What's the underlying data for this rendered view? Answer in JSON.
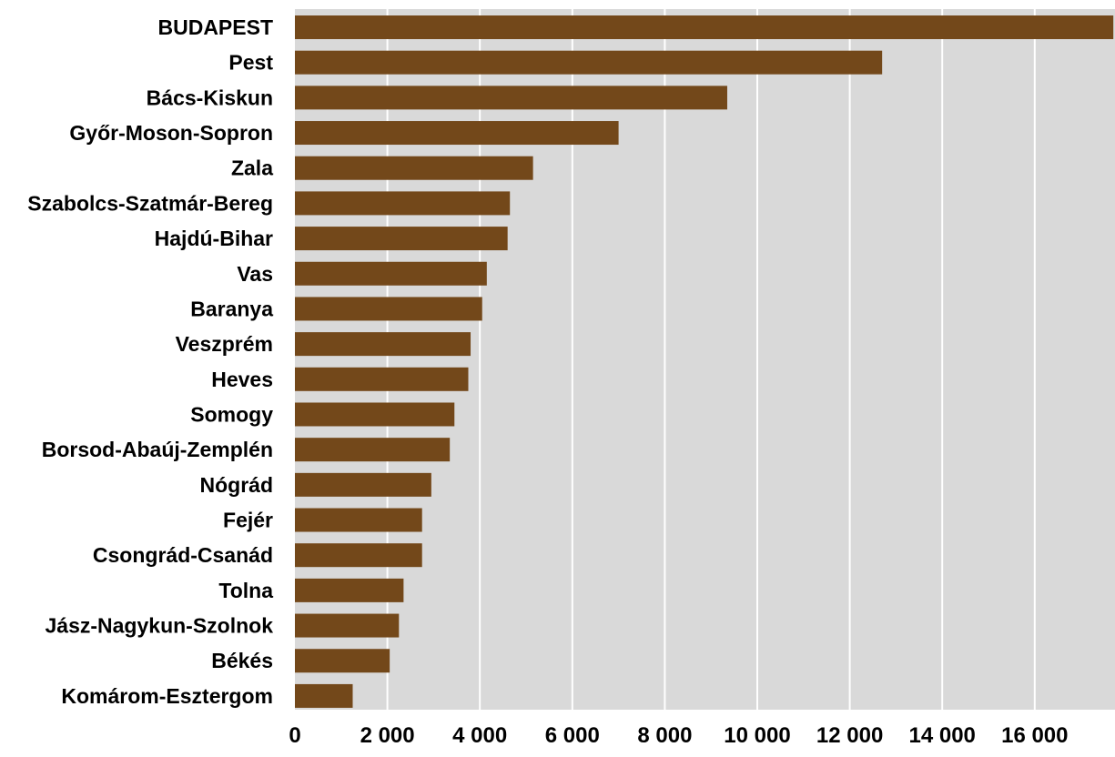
{
  "chart_data": {
    "type": "bar",
    "orientation": "horizontal",
    "title": "",
    "xlabel": "",
    "ylabel": "",
    "xlim": [
      0,
      17600
    ],
    "grid": true,
    "categories": [
      "BUDAPEST",
      "Pest",
      "Bács-Kiskun",
      "Győr-Moson-Sopron",
      "Zala",
      "Szabolcs-Szatmár-Bereg",
      "Hajdú-Bihar",
      "Vas",
      "Baranya",
      "Veszprém",
      "Heves",
      "Somogy",
      "Borsod-Abaúj-Zemplén",
      "Nógrád",
      "Fejér",
      "Csongrád-Csanád",
      "Tolna",
      "Jász-Nagykun-Szolnok",
      "Békés",
      "Komárom-Esztergom"
    ],
    "values": [
      17700,
      12700,
      9350,
      7000,
      5150,
      4650,
      4600,
      4150,
      4050,
      3800,
      3750,
      3450,
      3350,
      2950,
      2750,
      2750,
      2350,
      2250,
      2050,
      1250
    ],
    "x_ticks": [
      {
        "value": 0,
        "label": "0"
      },
      {
        "value": 2000,
        "label": "2 000"
      },
      {
        "value": 4000,
        "label": "4 000"
      },
      {
        "value": 6000,
        "label": "6 000"
      },
      {
        "value": 8000,
        "label": "8 000"
      },
      {
        "value": 10000,
        "label": "10 000"
      },
      {
        "value": 12000,
        "label": "12 000"
      },
      {
        "value": 14000,
        "label": "14 000"
      },
      {
        "value": 16000,
        "label": "16 000"
      }
    ],
    "colors": {
      "bar": "#73481a",
      "plot_background": "#d9d9d9",
      "gridline": "#ffffff"
    }
  }
}
